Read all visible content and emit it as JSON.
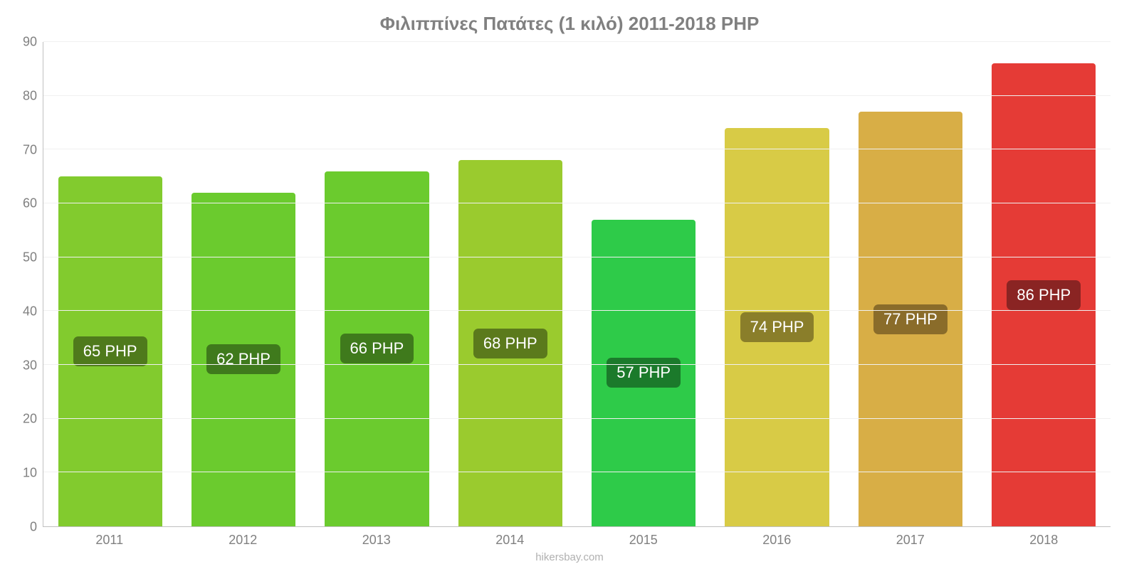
{
  "chart": {
    "type": "bar",
    "title": "Φιλιππίνες Πατάτες (1 κιλό) 2011-2018 PHP",
    "title_fontsize": 26,
    "title_color": "#808080",
    "background_color": "#ffffff",
    "grid_color": "#f0f0f0",
    "axis_color": "#c0c0c0",
    "tick_label_color": "#808080",
    "tick_fontsize": 18,
    "ylim": [
      0,
      90
    ],
    "ytick_step": 10,
    "yticks": [
      0,
      10,
      20,
      30,
      40,
      50,
      60,
      70,
      80,
      90
    ],
    "categories": [
      "2011",
      "2012",
      "2013",
      "2014",
      "2015",
      "2016",
      "2017",
      "2018"
    ],
    "values": [
      65,
      62,
      66,
      68,
      57,
      74,
      77,
      86
    ],
    "value_labels": [
      "65 PHP",
      "62 PHP",
      "66 PHP",
      "68 PHP",
      "57 PHP",
      "74 PHP",
      "77 PHP",
      "86 PHP"
    ],
    "bar_colors": [
      "#82cb2e",
      "#6bcb2e",
      "#6bcb2e",
      "#9acb2e",
      "#2ecb49",
      "#d8cb46",
      "#d8ae46",
      "#e53b36"
    ],
    "label_bg_colors": [
      "#4f7a1c",
      "#3f7a1c",
      "#3f7a1c",
      "#5b7a1c",
      "#1b7a2b",
      "#8a7e2a",
      "#8a6c2a",
      "#8a2423"
    ],
    "label_fontsize": 22,
    "bar_width": 0.78,
    "bar_border_radius": 4,
    "footer": "hikersbay.com",
    "footer_color": "#b0b0b0",
    "footer_fontsize": 15
  }
}
